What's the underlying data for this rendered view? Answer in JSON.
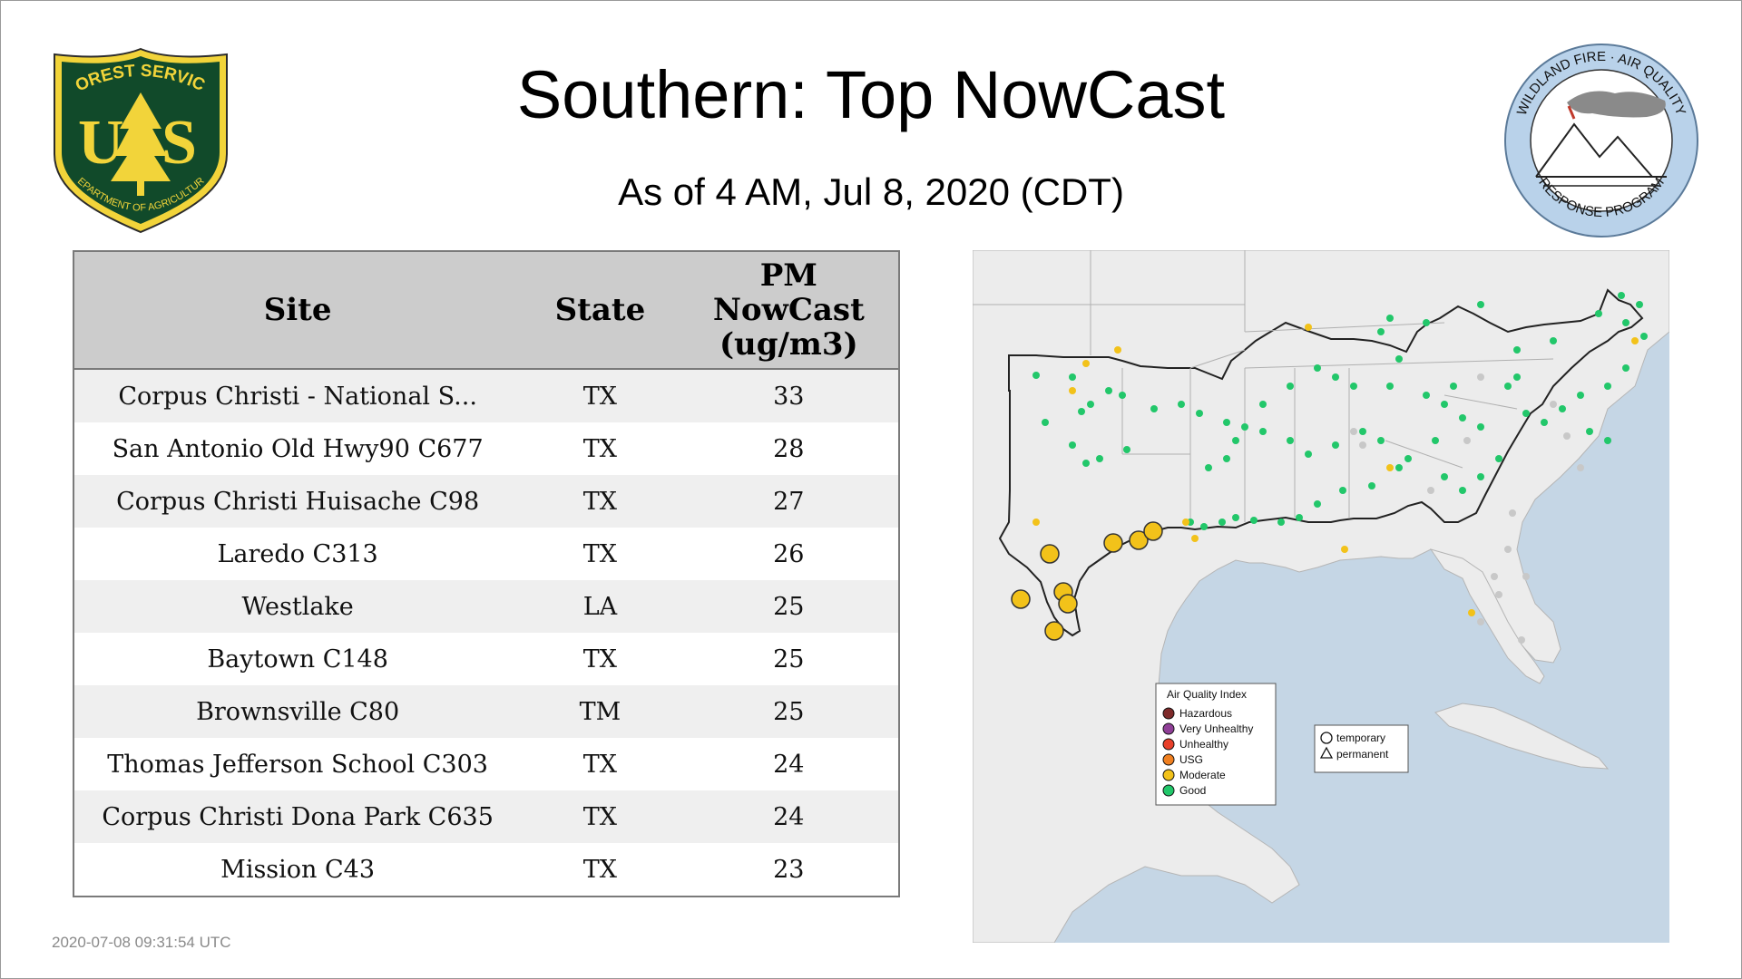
{
  "header": {
    "title": "Southern: Top NowCast",
    "subtitle": "As of  4 AM, Jul  8, 2020 (CDT)"
  },
  "logos": {
    "usfs": {
      "top_text": "FOREST SERVICE",
      "letters": "USS",
      "bottom_text": "DEPARTMENT OF AGRICULTURE"
    },
    "wfaq": {
      "top_text": "WILDLAND FIRE · AIR QUALITY",
      "bottom_text": "RESPONSE PROGRAM"
    }
  },
  "table": {
    "headers": {
      "site": "Site",
      "state": "State",
      "pm_line1": "PM",
      "pm_line2": "NowCast",
      "pm_line3": "(ug/m3)"
    },
    "rows": [
      {
        "site": "Corpus Christi - National S...",
        "state": "TX",
        "pm": "33"
      },
      {
        "site": "San Antonio Old Hwy90 C677",
        "state": "TX",
        "pm": "28"
      },
      {
        "site": "Corpus Christi Huisache C98",
        "state": "TX",
        "pm": "27"
      },
      {
        "site": "Laredo C313",
        "state": "TX",
        "pm": "26"
      },
      {
        "site": "Westlake",
        "state": "LA",
        "pm": "25"
      },
      {
        "site": "Baytown C148",
        "state": "TX",
        "pm": "25"
      },
      {
        "site": "Brownsville C80",
        "state": "TM",
        "pm": "25"
      },
      {
        "site": "Thomas Jefferson School C303",
        "state": "TX",
        "pm": "24"
      },
      {
        "site": "Corpus Christi Dona Park C635",
        "state": "TX",
        "pm": "24"
      },
      {
        "site": "Mission C43",
        "state": "TX",
        "pm": "23"
      }
    ]
  },
  "map": {
    "legend": {
      "title": "Air Quality Index",
      "items": [
        {
          "label": "Hazardous",
          "color": "#7e2a2a"
        },
        {
          "label": "Very Unhealthy",
          "color": "#8f3f97"
        },
        {
          "label": "Unhealthy",
          "color": "#e8402a"
        },
        {
          "label": "USG",
          "color": "#f08020"
        },
        {
          "label": "Moderate",
          "color": "#f2c21a"
        },
        {
          "label": "Good",
          "color": "#22c76a"
        }
      ],
      "shapes": [
        {
          "label": "temporary",
          "icon": "circle-icon"
        },
        {
          "label": "permanent",
          "icon": "triangle-icon"
        }
      ]
    },
    "colors": {
      "water": "#c5d6e5",
      "land": "#ececec",
      "border": "#222222",
      "no_data": "#c8c8c8"
    }
  },
  "footer": {
    "timestamp": "2020-07-08 09:31:54 UTC"
  }
}
